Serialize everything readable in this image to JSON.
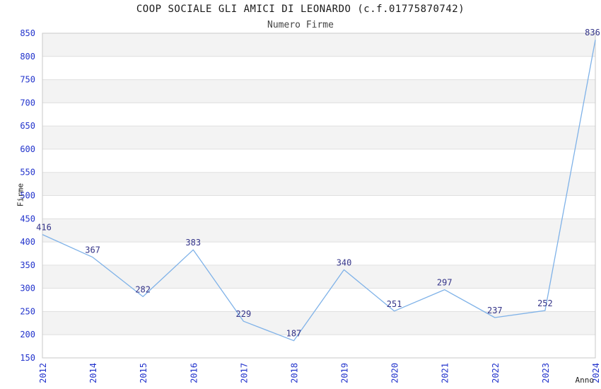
{
  "header": {
    "title": "COOP SOCIALE GLI AMICI DI LEONARDO (c.f.01775870742)",
    "subtitle": "Numero Firme"
  },
  "chart_data": {
    "type": "line",
    "title": "COOP SOCIALE GLI AMICI DI LEONARDO (c.f.01775870742)",
    "subtitle": "Numero Firme",
    "xlabel": "Anno",
    "ylabel": "Firme",
    "categories": [
      "2012",
      "2014",
      "2015",
      "2016",
      "2017",
      "2018",
      "2019",
      "2020",
      "2021",
      "2022",
      "2023",
      "2024"
    ],
    "values": [
      416,
      367,
      282,
      383,
      229,
      187,
      340,
      251,
      297,
      237,
      252,
      836
    ],
    "ylim": [
      150,
      850
    ],
    "ytick_step": 50,
    "grid": true,
    "alternate_bands": true,
    "legend": "none",
    "colors": {
      "line": "#7fb2e8",
      "tick_label": "#2233cc",
      "data_label": "#333388",
      "band_fill": "#f3f3f3",
      "grid_line": "#e0e0e0",
      "plot_border": "#c8c8c8",
      "title": "#1a1a1a",
      "subtitle": "#444444",
      "axis_title": "#222222",
      "background": "#ffffff"
    }
  }
}
